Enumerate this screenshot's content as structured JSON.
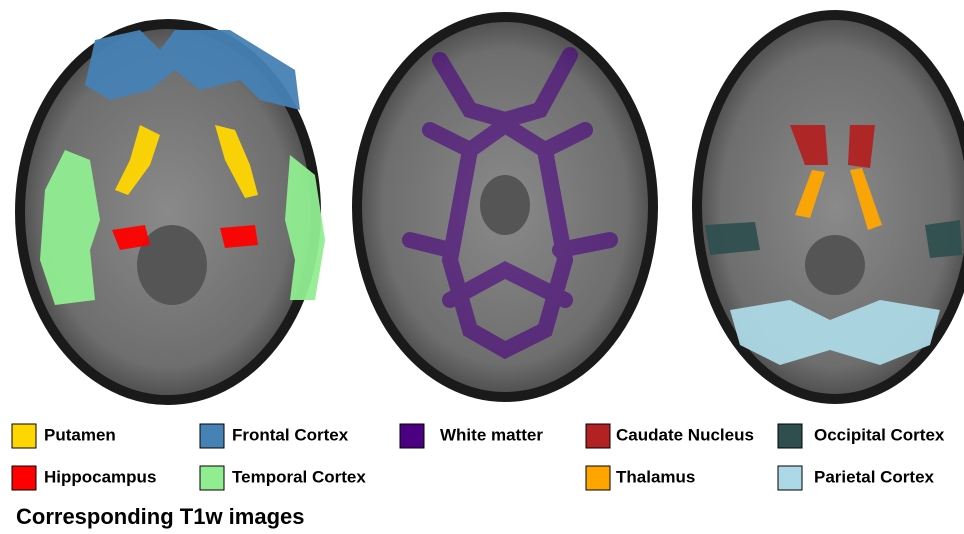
{
  "legend": {
    "items": [
      {
        "label": "Putamen",
        "color": "#ffd700"
      },
      {
        "label": "Frontal Cortex",
        "color": "#4682b4"
      },
      {
        "label": "White matter",
        "color": "#4b0082"
      },
      {
        "label": "Caudate Nucleus",
        "color": "#b22222"
      },
      {
        "label": "Occipital Cortex",
        "color": "#2f4f4f"
      },
      {
        "label": "Hippocampus",
        "color": "#ff0000"
      },
      {
        "label": "Temporal Cortex",
        "color": "#90ee90"
      },
      {
        "label": "Thalamus",
        "color": "#ffa500"
      },
      {
        "label": "Parietal Cortex",
        "color": "#add8e6"
      }
    ]
  },
  "caption": "Corresponding T1w images"
}
